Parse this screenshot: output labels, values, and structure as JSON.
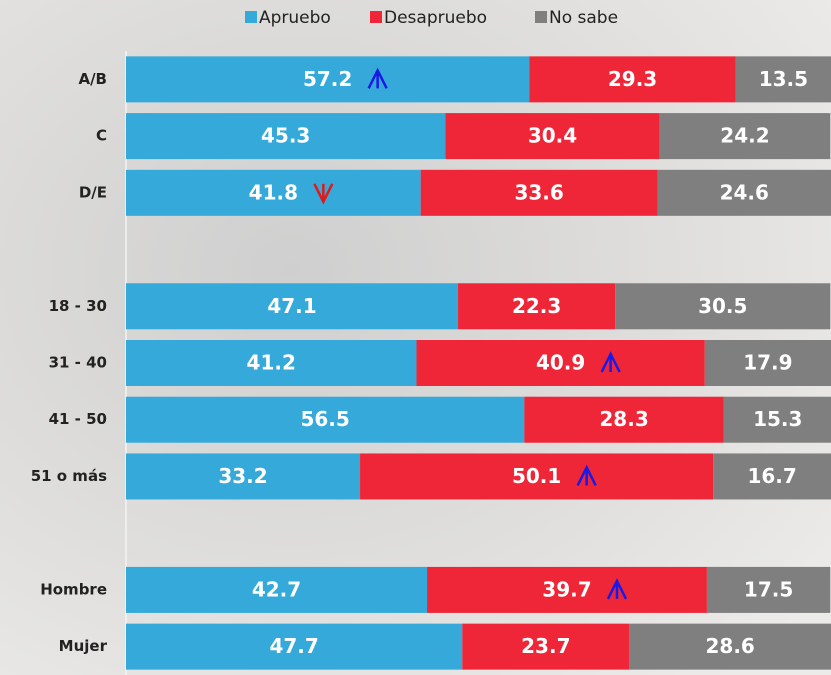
{
  "chart_data": {
    "type": "stacked-bar-horizontal",
    "categories": [
      "A/B",
      "C",
      "D/E",
      null,
      "18 - 30",
      "31 - 40",
      "41 - 50",
      "51 o más",
      null,
      "Hombre",
      "Mujer"
    ],
    "series": [
      {
        "name": "Apruebo",
        "color": "#35a9da",
        "values": [
          57.2,
          45.3,
          41.8,
          null,
          47.1,
          41.2,
          56.5,
          33.2,
          null,
          42.7,
          47.7
        ]
      },
      {
        "name": "Desapruebo",
        "color": "#ef2637",
        "values": [
          29.3,
          30.4,
          33.6,
          null,
          22.3,
          40.9,
          28.3,
          50.1,
          null,
          39.7,
          23.7
        ]
      },
      {
        "name": "No sabe",
        "color": "#7f7f7f",
        "values": [
          13.5,
          24.2,
          24.6,
          null,
          30.5,
          17.9,
          15.3,
          16.7,
          null,
          17.5,
          28.6
        ]
      }
    ],
    "xlim": [
      0,
      100
    ],
    "legend": "top",
    "arrows": [
      {
        "series": 0,
        "category": 0,
        "direction": "up",
        "color": "#1a1ae6"
      },
      {
        "series": 0,
        "category": 2,
        "direction": "down",
        "color": "#e01a1a"
      },
      {
        "series": 1,
        "category": 5,
        "direction": "up",
        "color": "#1a1ae6"
      },
      {
        "series": 1,
        "category": 7,
        "direction": "up",
        "color": "#1a1ae6"
      },
      {
        "series": 1,
        "category": 9,
        "direction": "up",
        "color": "#1a1ae6"
      }
    ]
  }
}
